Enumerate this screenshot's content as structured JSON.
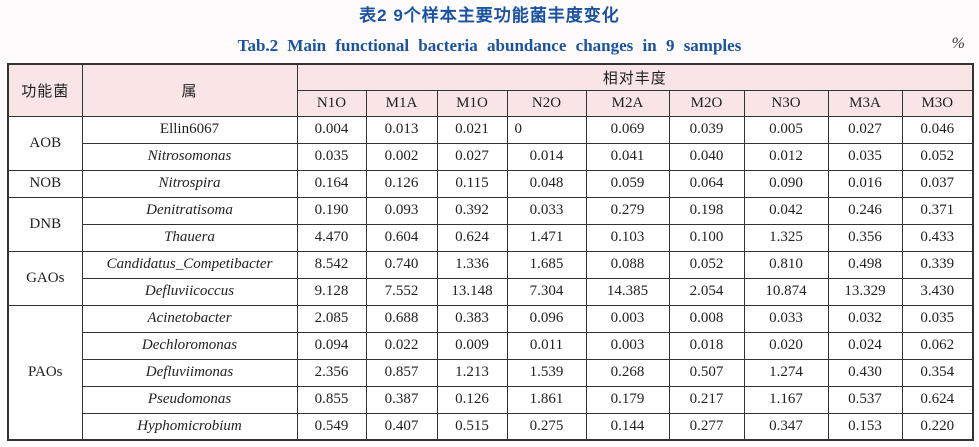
{
  "caption": {
    "zh": "表2  9个样本主要功能菌丰度变化",
    "en": "Tab.2  Main functional bacteria abundance changes in 9 samples",
    "unit": "%"
  },
  "colors": {
    "title_blue": "#1b52a1",
    "header_pink": "#f9e5e6"
  },
  "table": {
    "header": {
      "functional": "功能菌",
      "genus": "属",
      "abundance": "相对丰度",
      "samples": [
        "N1O",
        "M1A",
        "M1O",
        "N2O",
        "M2A",
        "M2O",
        "N3O",
        "M3A",
        "M3O"
      ]
    },
    "groups": [
      {
        "name": "AOB",
        "rows": [
          {
            "genus": "Ellin6067",
            "italic": false,
            "values": [
              "0.004",
              "0.013",
              "0.021",
              "0",
              "0.069",
              "0.039",
              "0.005",
              "0.027",
              "0.046"
            ]
          },
          {
            "genus": "Nitrosomonas",
            "italic": true,
            "values": [
              "0.035",
              "0.002",
              "0.027",
              "0.014",
              "0.041",
              "0.040",
              "0.012",
              "0.035",
              "0.052"
            ]
          }
        ]
      },
      {
        "name": "NOB",
        "rows": [
          {
            "genus": "Nitrospira",
            "italic": true,
            "values": [
              "0.164",
              "0.126",
              "0.115",
              "0.048",
              "0.059",
              "0.064",
              "0.090",
              "0.016",
              "0.037"
            ]
          }
        ]
      },
      {
        "name": "DNB",
        "rows": [
          {
            "genus": "Denitratisoma",
            "italic": true,
            "values": [
              "0.190",
              "0.093",
              "0.392",
              "0.033",
              "0.279",
              "0.198",
              "0.042",
              "0.246",
              "0.371"
            ]
          },
          {
            "genus": "Thauera",
            "italic": true,
            "values": [
              "4.470",
              "0.604",
              "0.624",
              "1.471",
              "0.103",
              "0.100",
              "1.325",
              "0.356",
              "0.433"
            ]
          }
        ]
      },
      {
        "name": "GAOs",
        "rows": [
          {
            "genus": "Candidatus_Competibacter",
            "italic": true,
            "values": [
              "8.542",
              "0.740",
              "1.336",
              "1.685",
              "0.088",
              "0.052",
              "0.810",
              "0.498",
              "0.339"
            ]
          },
          {
            "genus": "Defluviicoccus",
            "italic": true,
            "values": [
              "9.128",
              "7.552",
              "13.148",
              "7.304",
              "14.385",
              "2.054",
              "10.874",
              "13.329",
              "3.430"
            ]
          }
        ]
      },
      {
        "name": "PAOs",
        "rows": [
          {
            "genus": "Acinetobacter",
            "italic": true,
            "values": [
              "2.085",
              "0.688",
              "0.383",
              "0.096",
              "0.003",
              "0.008",
              "0.033",
              "0.032",
              "0.035"
            ]
          },
          {
            "genus": "Dechloromonas",
            "italic": true,
            "values": [
              "0.094",
              "0.022",
              "0.009",
              "0.011",
              "0.003",
              "0.018",
              "0.020",
              "0.024",
              "0.062"
            ]
          },
          {
            "genus": "Defluviimonas",
            "italic": true,
            "values": [
              "2.356",
              "0.857",
              "1.213",
              "1.539",
              "0.268",
              "0.507",
              "1.274",
              "0.430",
              "0.354"
            ]
          },
          {
            "genus": "Pseudomonas",
            "italic": true,
            "values": [
              "0.855",
              "0.387",
              "0.126",
              "1.861",
              "0.179",
              "0.217",
              "1.167",
              "0.537",
              "0.624"
            ]
          },
          {
            "genus": "Hyphomicrobium",
            "italic": true,
            "values": [
              "0.549",
              "0.407",
              "0.515",
              "0.275",
              "0.144",
              "0.277",
              "0.347",
              "0.153",
              "0.220"
            ]
          }
        ]
      }
    ]
  }
}
